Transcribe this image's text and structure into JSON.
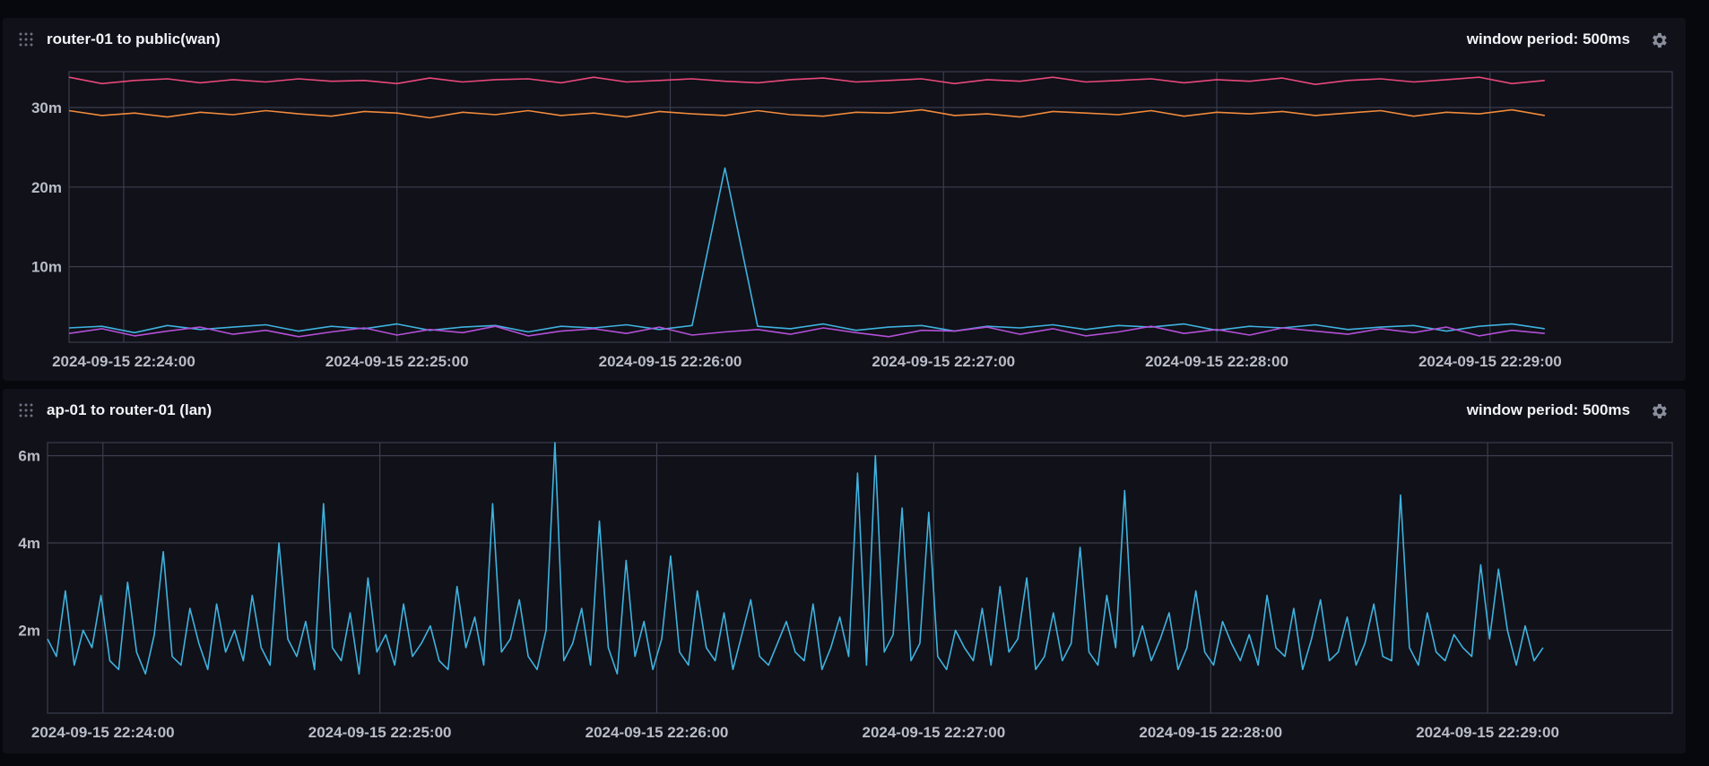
{
  "cells": [
    {
      "title": "router-01 to public(wan)",
      "window_period_label": "window period: 500ms",
      "settings_icon": "gear-icon",
      "drag_icon": "drag-handle-icon"
    },
    {
      "title": "ap-01 to router-01 (lan)",
      "window_period_label": "window period: 500ms",
      "settings_icon": "gear-icon",
      "drag_icon": "drag-handle-icon"
    }
  ],
  "chart_data": [
    {
      "type": "line",
      "title": "router-01 to public(wan)",
      "xlabel": "",
      "ylabel": "",
      "x_ticks": [
        "2024-09-15 22:24:00",
        "2024-09-15 22:25:00",
        "2024-09-15 22:26:00",
        "2024-09-15 22:27:00",
        "2024-09-15 22:28:00",
        "2024-09-15 22:29:00"
      ],
      "y_ticks": [
        {
          "value": 10,
          "label": "10m"
        },
        {
          "value": 20,
          "label": "20m"
        },
        {
          "value": 30,
          "label": "30m"
        }
      ],
      "ylim": [
        0.5,
        34.5
      ],
      "x_start": "2024-09-15 22:23:48",
      "x_end": "2024-09-15 22:28:48",
      "x_range_seconds": [
        -12,
        340
      ],
      "grid": true,
      "series": [
        {
          "color": "#e8487a",
          "values": [
            33.8,
            33.0,
            33.4,
            33.6,
            33.1,
            33.5,
            33.2,
            33.6,
            33.3,
            33.4,
            33.0,
            33.7,
            33.2,
            33.5,
            33.6,
            33.1,
            33.8,
            33.2,
            33.4,
            33.6,
            33.3,
            33.1,
            33.5,
            33.7,
            33.2,
            33.4,
            33.6,
            33.0,
            33.5,
            33.3,
            33.8,
            33.2,
            33.4,
            33.6,
            33.1,
            33.5,
            33.3,
            33.7,
            32.9,
            33.4,
            33.6,
            33.2,
            33.5,
            33.8,
            33.0,
            33.4
          ]
        },
        {
          "color": "#f08a3c",
          "values": [
            29.6,
            29.0,
            29.3,
            28.8,
            29.4,
            29.1,
            29.6,
            29.2,
            28.9,
            29.5,
            29.3,
            28.7,
            29.4,
            29.1,
            29.6,
            29.0,
            29.3,
            28.8,
            29.5,
            29.2,
            29.0,
            29.6,
            29.1,
            28.9,
            29.4,
            29.3,
            29.7,
            29.0,
            29.2,
            28.8,
            29.5,
            29.3,
            29.1,
            29.6,
            28.9,
            29.4,
            29.2,
            29.5,
            29.0,
            29.3,
            29.6,
            28.9,
            29.4,
            29.2,
            29.7,
            29.0
          ]
        },
        {
          "color": "#3fb2de",
          "values": [
            2.3,
            2.5,
            1.7,
            2.6,
            2.1,
            2.4,
            2.7,
            1.9,
            2.5,
            2.2,
            2.8,
            2.0,
            2.4,
            2.6,
            1.8,
            2.5,
            2.3,
            2.7,
            2.1,
            2.6,
            22.4,
            2.5,
            2.2,
            2.8,
            2.0,
            2.4,
            2.6,
            1.9,
            2.5,
            2.3,
            2.7,
            2.1,
            2.6,
            2.4,
            2.8,
            2.0,
            2.5,
            2.3,
            2.7,
            2.1,
            2.4,
            2.6,
            1.9,
            2.5,
            2.8,
            2.2
          ]
        },
        {
          "color": "#b34fd6",
          "values": [
            1.6,
            2.2,
            1.3,
            1.9,
            2.4,
            1.5,
            2.0,
            1.2,
            1.8,
            2.3,
            1.4,
            2.1,
            1.7,
            2.5,
            1.3,
            1.9,
            2.2,
            1.6,
            2.4,
            1.4,
            1.8,
            2.1,
            1.5,
            2.3,
            1.7,
            1.2,
            2.0,
            1.9,
            2.4,
            1.5,
            2.2,
            1.3,
            1.8,
            2.5,
            1.6,
            2.1,
            1.4,
            2.3,
            1.9,
            1.5,
            2.2,
            1.7,
            2.4,
            1.3,
            2.0,
            1.6
          ]
        }
      ]
    },
    {
      "type": "line",
      "title": "ap-01 to router-01 (lan)",
      "xlabel": "",
      "ylabel": "",
      "x_ticks": [
        "2024-09-15 22:24:00",
        "2024-09-15 22:25:00",
        "2024-09-15 22:26:00",
        "2024-09-15 22:27:00",
        "2024-09-15 22:28:00",
        "2024-09-15 22:29:00"
      ],
      "y_ticks": [
        {
          "value": 2,
          "label": "2m"
        },
        {
          "value": 4,
          "label": "4m"
        },
        {
          "value": 6,
          "label": "6m"
        }
      ],
      "ylim": [
        0.1,
        6.3
      ],
      "x_start": "2024-09-15 22:23:47",
      "x_end": "2024-09-15 22:28:47",
      "x_range_seconds": [
        -12,
        340
      ],
      "grid": true,
      "series": [
        {
          "color": "#3fb2de",
          "values": [
            1.8,
            1.4,
            2.9,
            1.2,
            2.0,
            1.6,
            2.8,
            1.3,
            1.1,
            3.1,
            1.5,
            1.0,
            1.9,
            3.8,
            1.4,
            1.2,
            2.5,
            1.7,
            1.1,
            2.6,
            1.5,
            2.0,
            1.3,
            2.8,
            1.6,
            1.2,
            4.0,
            1.8,
            1.4,
            2.2,
            1.1,
            4.9,
            1.6,
            1.3,
            2.4,
            1.0,
            3.2,
            1.5,
            1.9,
            1.2,
            2.6,
            1.4,
            1.7,
            2.1,
            1.3,
            1.1,
            3.0,
            1.6,
            2.3,
            1.2,
            4.9,
            1.5,
            1.8,
            2.7,
            1.4,
            1.1,
            2.0,
            6.3,
            1.3,
            1.7,
            2.5,
            1.2,
            4.5,
            1.6,
            1.0,
            3.6,
            1.4,
            2.2,
            1.1,
            1.8,
            3.7,
            1.5,
            1.2,
            2.9,
            1.6,
            1.3,
            2.4,
            1.1,
            1.9,
            2.7,
            1.4,
            1.2,
            1.7,
            2.2,
            1.5,
            1.3,
            2.6,
            1.1,
            1.6,
            2.3,
            1.4,
            5.6,
            1.2,
            6.0,
            1.5,
            1.9,
            4.8,
            1.3,
            1.7,
            4.7,
            1.4,
            1.1,
            2.0,
            1.6,
            1.3,
            2.5,
            1.2,
            3.0,
            1.5,
            1.8,
            3.2,
            1.1,
            1.4,
            2.4,
            1.3,
            1.7,
            3.9,
            1.5,
            1.2,
            2.8,
            1.6,
            5.2,
            1.4,
            2.1,
            1.3,
            1.8,
            2.4,
            1.1,
            1.6,
            2.9,
            1.5,
            1.2,
            2.2,
            1.7,
            1.3,
            1.9,
            1.2,
            2.8,
            1.6,
            1.4,
            2.5,
            1.1,
            1.8,
            2.7,
            1.3,
            1.5,
            2.3,
            1.2,
            1.7,
            2.6,
            1.4,
            1.3,
            5.1,
            1.6,
            1.2,
            2.4,
            1.5,
            1.3,
            1.9,
            1.6,
            1.4,
            3.5,
            1.8,
            3.4,
            2.0,
            1.2,
            2.1,
            1.3,
            1.6
          ]
        }
      ]
    }
  ]
}
